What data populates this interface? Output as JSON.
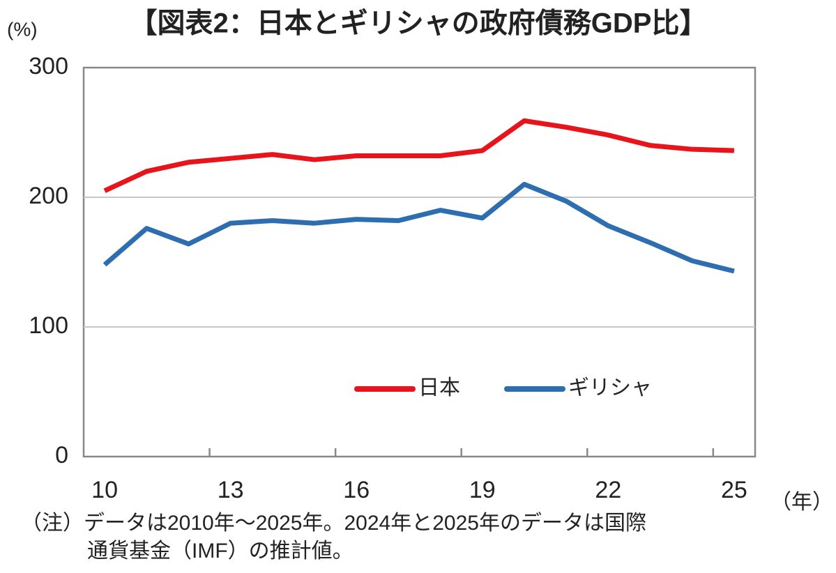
{
  "chart_data": {
    "type": "line",
    "title": "【図表2：日本とギリシャの政府債務GDP比】",
    "y_unit": "(%)",
    "x_unit": "（年）",
    "notes": [
      "（注）データは2010年～2025年。2024年と2025年のデータは国際",
      "通貨基金（IMF）の推計値。"
    ],
    "categories": [
      "10",
      null,
      null,
      "13",
      null,
      null,
      "16",
      null,
      null,
      "19",
      null,
      null,
      "22",
      null,
      null,
      "25"
    ],
    "series": [
      {
        "name": "日本",
        "color": "#e8141b",
        "values": [
          205,
          220,
          227,
          230,
          233,
          229,
          232,
          232,
          232,
          236,
          259,
          254,
          248,
          240,
          237,
          236
        ]
      },
      {
        "name": "ギリシャ",
        "color": "#2e6eb0",
        "values": [
          148,
          176,
          164,
          180,
          182,
          180,
          183,
          182,
          190,
          184,
          210,
          197,
          178,
          165,
          151,
          143
        ]
      }
    ],
    "ylim": [
      0,
      300
    ],
    "yticks": [
      0,
      100,
      200,
      300
    ],
    "grid": true
  }
}
